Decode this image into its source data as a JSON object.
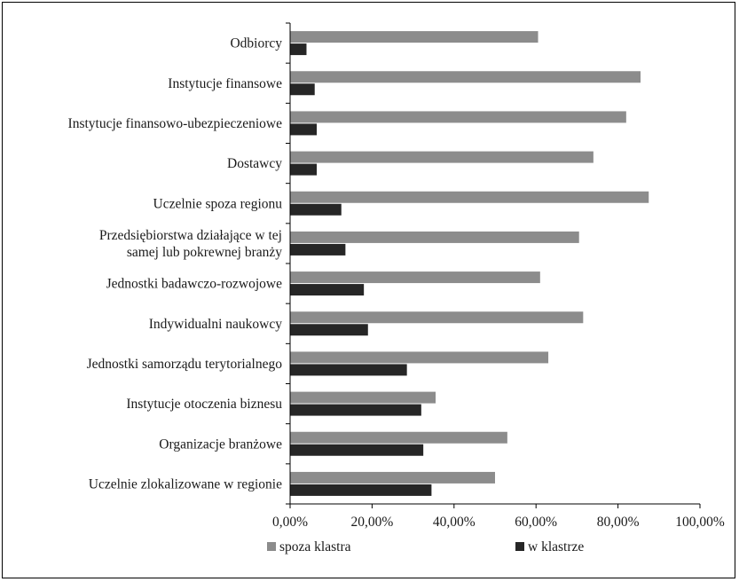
{
  "chart_data": {
    "type": "bar",
    "orientation": "horizontal",
    "categories": [
      "Odbiorcy",
      "Instytucje finansowe",
      "Instytucje finansowo-ubezpieczeniowe",
      "Dostawcy",
      "Uczelnie spoza regionu",
      "Przedsiębiorstwa działające w tej samej lub pokrewnej branży",
      "Jednostki badawczo-rozwojowe",
      "Indywidualni naukowcy",
      "Jednostki samorządu terytorialnego",
      "Instytucje otoczenia biznesu",
      "Organizacje branżowe",
      "Uczelnie zlokalizowane w regionie"
    ],
    "category_lines": [
      [
        "Odbiorcy"
      ],
      [
        "Instytucje finansowe"
      ],
      [
        "Instytucje finansowo-ubezpieczeniowe"
      ],
      [
        "Dostawcy"
      ],
      [
        "Uczelnie spoza regionu"
      ],
      [
        "Przedsiębiorstwa działające w tej",
        "samej lub pokrewnej branży"
      ],
      [
        "Jednostki badawczo-rozwojowe"
      ],
      [
        "Indywidualni naukowcy"
      ],
      [
        "Jednostki samorządu terytorialnego"
      ],
      [
        "Instytucje otoczenia biznesu"
      ],
      [
        "Organizacje branżowe"
      ],
      [
        "Uczelnie zlokalizowane w regionie"
      ]
    ],
    "series": [
      {
        "name": "spoza klastra",
        "color": "#8c8c8c",
        "values": [
          60.5,
          85.5,
          82.0,
          74.0,
          87.5,
          70.5,
          61.0,
          71.5,
          63.0,
          35.5,
          53.0,
          50.0
        ]
      },
      {
        "name": "w klastrze",
        "color": "#262626",
        "values": [
          4.0,
          6.0,
          6.5,
          6.5,
          12.5,
          13.5,
          18.0,
          19.0,
          28.5,
          32.0,
          32.5,
          34.5
        ]
      }
    ],
    "xlim": [
      0,
      100
    ],
    "xticks": [
      "0,00%",
      "20,00%",
      "40,00%",
      "60,00%",
      "80,00%",
      "100,00%"
    ],
    "title": "",
    "xlabel": "",
    "ylabel": "",
    "grid": false,
    "legend_position": "bottom"
  }
}
